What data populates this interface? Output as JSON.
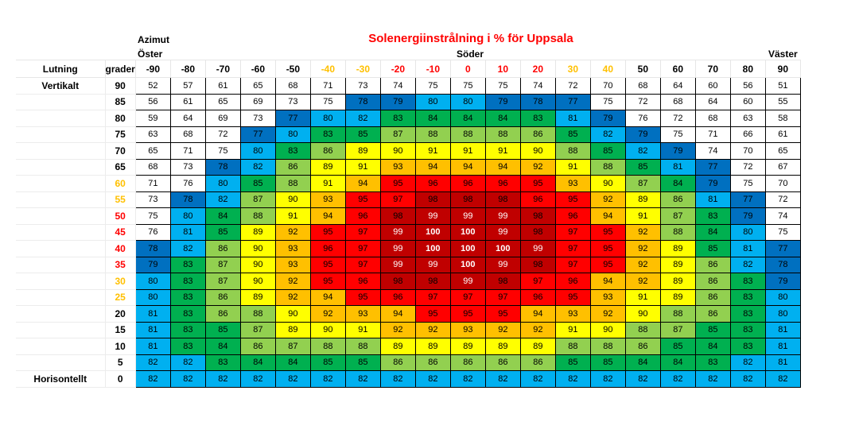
{
  "title": {
    "text": "Solenergiinstrålning i % för Uppsala",
    "color": "#FF0000"
  },
  "labels": {
    "azimut": "Azimut",
    "oster": "Öster",
    "soder": "Söder",
    "vaster": "Väster",
    "lutning": "Lutning",
    "grader": "grader",
    "vertikalt": "Vertikalt",
    "horisontellt": "Horisontellt"
  },
  "label_tones": {
    "black": "#000000",
    "gold": "#FFC000",
    "red": "#FF0000"
  },
  "table": {
    "columns": [
      {
        "label": "-90",
        "tone": "black"
      },
      {
        "label": "-80",
        "tone": "black"
      },
      {
        "label": "-70",
        "tone": "black"
      },
      {
        "label": "-60",
        "tone": "black"
      },
      {
        "label": "-50",
        "tone": "black"
      },
      {
        "label": "-40",
        "tone": "gold"
      },
      {
        "label": "-30",
        "tone": "gold"
      },
      {
        "label": "-20",
        "tone": "red"
      },
      {
        "label": "-10",
        "tone": "red"
      },
      {
        "label": "0",
        "tone": "red"
      },
      {
        "label": "10",
        "tone": "red"
      },
      {
        "label": "20",
        "tone": "red"
      },
      {
        "label": "30",
        "tone": "gold"
      },
      {
        "label": "40",
        "tone": "gold"
      },
      {
        "label": "50",
        "tone": "black"
      },
      {
        "label": "60",
        "tone": "black"
      },
      {
        "label": "70",
        "tone": "black"
      },
      {
        "label": "80",
        "tone": "black"
      },
      {
        "label": "90",
        "tone": "black"
      }
    ],
    "rows": [
      {
        "label": "90",
        "tone": "black"
      },
      {
        "label": "85",
        "tone": "black"
      },
      {
        "label": "80",
        "tone": "black"
      },
      {
        "label": "75",
        "tone": "black"
      },
      {
        "label": "70",
        "tone": "black"
      },
      {
        "label": "65",
        "tone": "black"
      },
      {
        "label": "60",
        "tone": "gold"
      },
      {
        "label": "55",
        "tone": "gold"
      },
      {
        "label": "50",
        "tone": "red"
      },
      {
        "label": "45",
        "tone": "red"
      },
      {
        "label": "40",
        "tone": "red"
      },
      {
        "label": "35",
        "tone": "red"
      },
      {
        "label": "30",
        "tone": "gold"
      },
      {
        "label": "25",
        "tone": "gold"
      },
      {
        "label": "20",
        "tone": "black"
      },
      {
        "label": "15",
        "tone": "black"
      },
      {
        "label": "10",
        "tone": "black"
      },
      {
        "label": "5",
        "tone": "black"
      },
      {
        "label": "0",
        "tone": "black"
      }
    ]
  },
  "color_scale": {
    "buckets": [
      {
        "min": 98,
        "bg": "#C00000"
      },
      {
        "min": 95,
        "bg": "#FF0000"
      },
      {
        "min": 92,
        "bg": "#FFC000"
      },
      {
        "min": 89,
        "bg": "#FFFF00"
      },
      {
        "min": 86,
        "bg": "#92D050"
      },
      {
        "min": 83,
        "bg": "#00B050"
      },
      {
        "min": 80,
        "bg": "#00B0F0"
      },
      {
        "min": 77,
        "bg": "#0070C0"
      },
      {
        "min": 0,
        "bg": "#FFFFFF"
      }
    ],
    "white_text_min": 99,
    "bold_text_min": 100
  },
  "chart_data": {
    "type": "heatmap",
    "title": "Solenergiinstrålning i % för Uppsala",
    "xlabel": "Azimut",
    "ylabel": "Lutning grader",
    "x_annotations": [
      {
        "text": "Öster",
        "x": -90
      },
      {
        "text": "Söder",
        "x": 0
      },
      {
        "text": "Väster",
        "x": 90
      }
    ],
    "y_annotations": [
      {
        "text": "Vertikalt",
        "y": 90
      },
      {
        "text": "Horisontellt",
        "y": 0
      }
    ],
    "x": [
      -90,
      -80,
      -70,
      -60,
      -50,
      -40,
      -30,
      -20,
      -10,
      0,
      10,
      20,
      30,
      40,
      50,
      60,
      70,
      80,
      90
    ],
    "y": [
      90,
      85,
      80,
      75,
      70,
      65,
      60,
      55,
      50,
      45,
      40,
      35,
      30,
      25,
      20,
      15,
      10,
      5,
      0
    ],
    "values": [
      [
        52,
        57,
        61,
        65,
        68,
        71,
        73,
        74,
        75,
        75,
        75,
        74,
        72,
        70,
        68,
        64,
        60,
        56,
        51
      ],
      [
        56,
        61,
        65,
        69,
        73,
        75,
        78,
        79,
        80,
        80,
        79,
        78,
        77,
        75,
        72,
        68,
        64,
        60,
        55
      ],
      [
        59,
        64,
        69,
        73,
        77,
        80,
        82,
        83,
        84,
        84,
        84,
        83,
        81,
        79,
        76,
        72,
        68,
        63,
        58
      ],
      [
        63,
        68,
        72,
        77,
        80,
        83,
        85,
        87,
        88,
        88,
        88,
        86,
        85,
        82,
        79,
        75,
        71,
        66,
        61
      ],
      [
        65,
        71,
        75,
        80,
        83,
        86,
        89,
        90,
        91,
        91,
        91,
        90,
        88,
        85,
        82,
        79,
        74,
        70,
        65
      ],
      [
        68,
        73,
        78,
        82,
        86,
        89,
        91,
        93,
        94,
        94,
        94,
        92,
        91,
        88,
        85,
        81,
        77,
        72,
        67
      ],
      [
        71,
        76,
        80,
        85,
        88,
        91,
        94,
        95,
        96,
        96,
        96,
        95,
        93,
        90,
        87,
        84,
        79,
        75,
        70
      ],
      [
        73,
        78,
        82,
        87,
        90,
        93,
        95,
        97,
        98,
        98,
        98,
        96,
        95,
        92,
        89,
        86,
        81,
        77,
        72
      ],
      [
        75,
        80,
        84,
        88,
        91,
        94,
        96,
        98,
        99,
        99,
        99,
        98,
        96,
        94,
        91,
        87,
        83,
        79,
        74
      ],
      [
        76,
        81,
        85,
        89,
        92,
        95,
        97,
        99,
        100,
        100,
        99,
        98,
        97,
        95,
        92,
        88,
        84,
        80,
        75
      ],
      [
        78,
        82,
        86,
        90,
        93,
        96,
        97,
        99,
        100,
        100,
        100,
        99,
        97,
        95,
        92,
        89,
        85,
        81,
        77
      ],
      [
        79,
        83,
        87,
        90,
        93,
        95,
        97,
        99,
        99,
        100,
        99,
        98,
        97,
        95,
        92,
        89,
        86,
        82,
        78
      ],
      [
        80,
        83,
        87,
        90,
        92,
        95,
        96,
        98,
        98,
        99,
        98,
        97,
        96,
        94,
        92,
        89,
        86,
        83,
        79
      ],
      [
        80,
        83,
        86,
        89,
        92,
        94,
        95,
        96,
        97,
        97,
        97,
        96,
        95,
        93,
        91,
        89,
        86,
        83,
        80
      ],
      [
        81,
        83,
        86,
        88,
        90,
        92,
        93,
        94,
        95,
        95,
        95,
        94,
        93,
        92,
        90,
        88,
        86,
        83,
        80
      ],
      [
        81,
        83,
        85,
        87,
        89,
        90,
        91,
        92,
        92,
        93,
        92,
        92,
        91,
        90,
        88,
        87,
        85,
        83,
        81
      ],
      [
        81,
        83,
        84,
        86,
        87,
        88,
        88,
        89,
        89,
        89,
        89,
        89,
        88,
        88,
        86,
        85,
        84,
        83,
        81
      ],
      [
        82,
        82,
        83,
        84,
        84,
        85,
        85,
        86,
        86,
        86,
        86,
        86,
        85,
        85,
        84,
        84,
        83,
        82,
        81
      ],
      [
        82,
        82,
        82,
        82,
        82,
        82,
        82,
        82,
        82,
        82,
        82,
        82,
        82,
        82,
        82,
        82,
        82,
        82,
        82
      ]
    ]
  }
}
